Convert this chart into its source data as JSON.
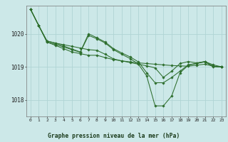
{
  "title": "Graphe pression niveau de la mer (hPa)",
  "background_color": "#cce8e8",
  "grid_color": "#b0d4d4",
  "line_color": "#2d6e2d",
  "x_ticks": [
    0,
    1,
    2,
    3,
    4,
    5,
    6,
    7,
    8,
    9,
    10,
    11,
    12,
    13,
    14,
    15,
    16,
    17,
    18,
    19,
    20,
    21,
    22,
    23
  ],
  "ylim": [
    1017.5,
    1020.85
  ],
  "yticks": [
    1018,
    1019,
    1020
  ],
  "series": [
    [
      1020.75,
      1020.25,
      1019.75,
      1019.65,
      1019.55,
      1019.45,
      1019.4,
      1019.35,
      1019.35,
      1019.28,
      1019.22,
      1019.18,
      1019.15,
      1019.12,
      1019.1,
      1019.08,
      1019.06,
      1019.04,
      1019.03,
      1019.02,
      1019.05,
      1019.08,
      1019.02,
      1019.0
    ],
    [
      1020.75,
      1020.25,
      1019.75,
      1019.68,
      1019.6,
      1019.52,
      1019.44,
      1019.95,
      1019.85,
      1019.72,
      1019.52,
      1019.38,
      1019.25,
      1019.08,
      1018.72,
      1017.82,
      1017.82,
      1018.12,
      1018.82,
      1019.05,
      1019.1,
      1019.15,
      1019.0,
      1019.0
    ],
    [
      1020.75,
      1020.25,
      1019.78,
      1019.72,
      1019.63,
      1019.54,
      1019.45,
      1020.0,
      1019.88,
      1019.75,
      1019.55,
      1019.42,
      1019.3,
      1019.15,
      1018.82,
      1018.52,
      1018.52,
      1018.68,
      1018.87,
      1019.06,
      1019.11,
      1019.16,
      1019.02,
      1019.0
    ],
    [
      1020.75,
      1020.25,
      1019.78,
      1019.72,
      1019.67,
      1019.62,
      1019.57,
      1019.52,
      1019.5,
      1019.38,
      1019.24,
      1019.18,
      1019.13,
      1019.08,
      1019.03,
      1018.97,
      1018.68,
      1018.87,
      1019.1,
      1019.16,
      1019.12,
      1019.16,
      1019.06,
      1019.0
    ]
  ]
}
